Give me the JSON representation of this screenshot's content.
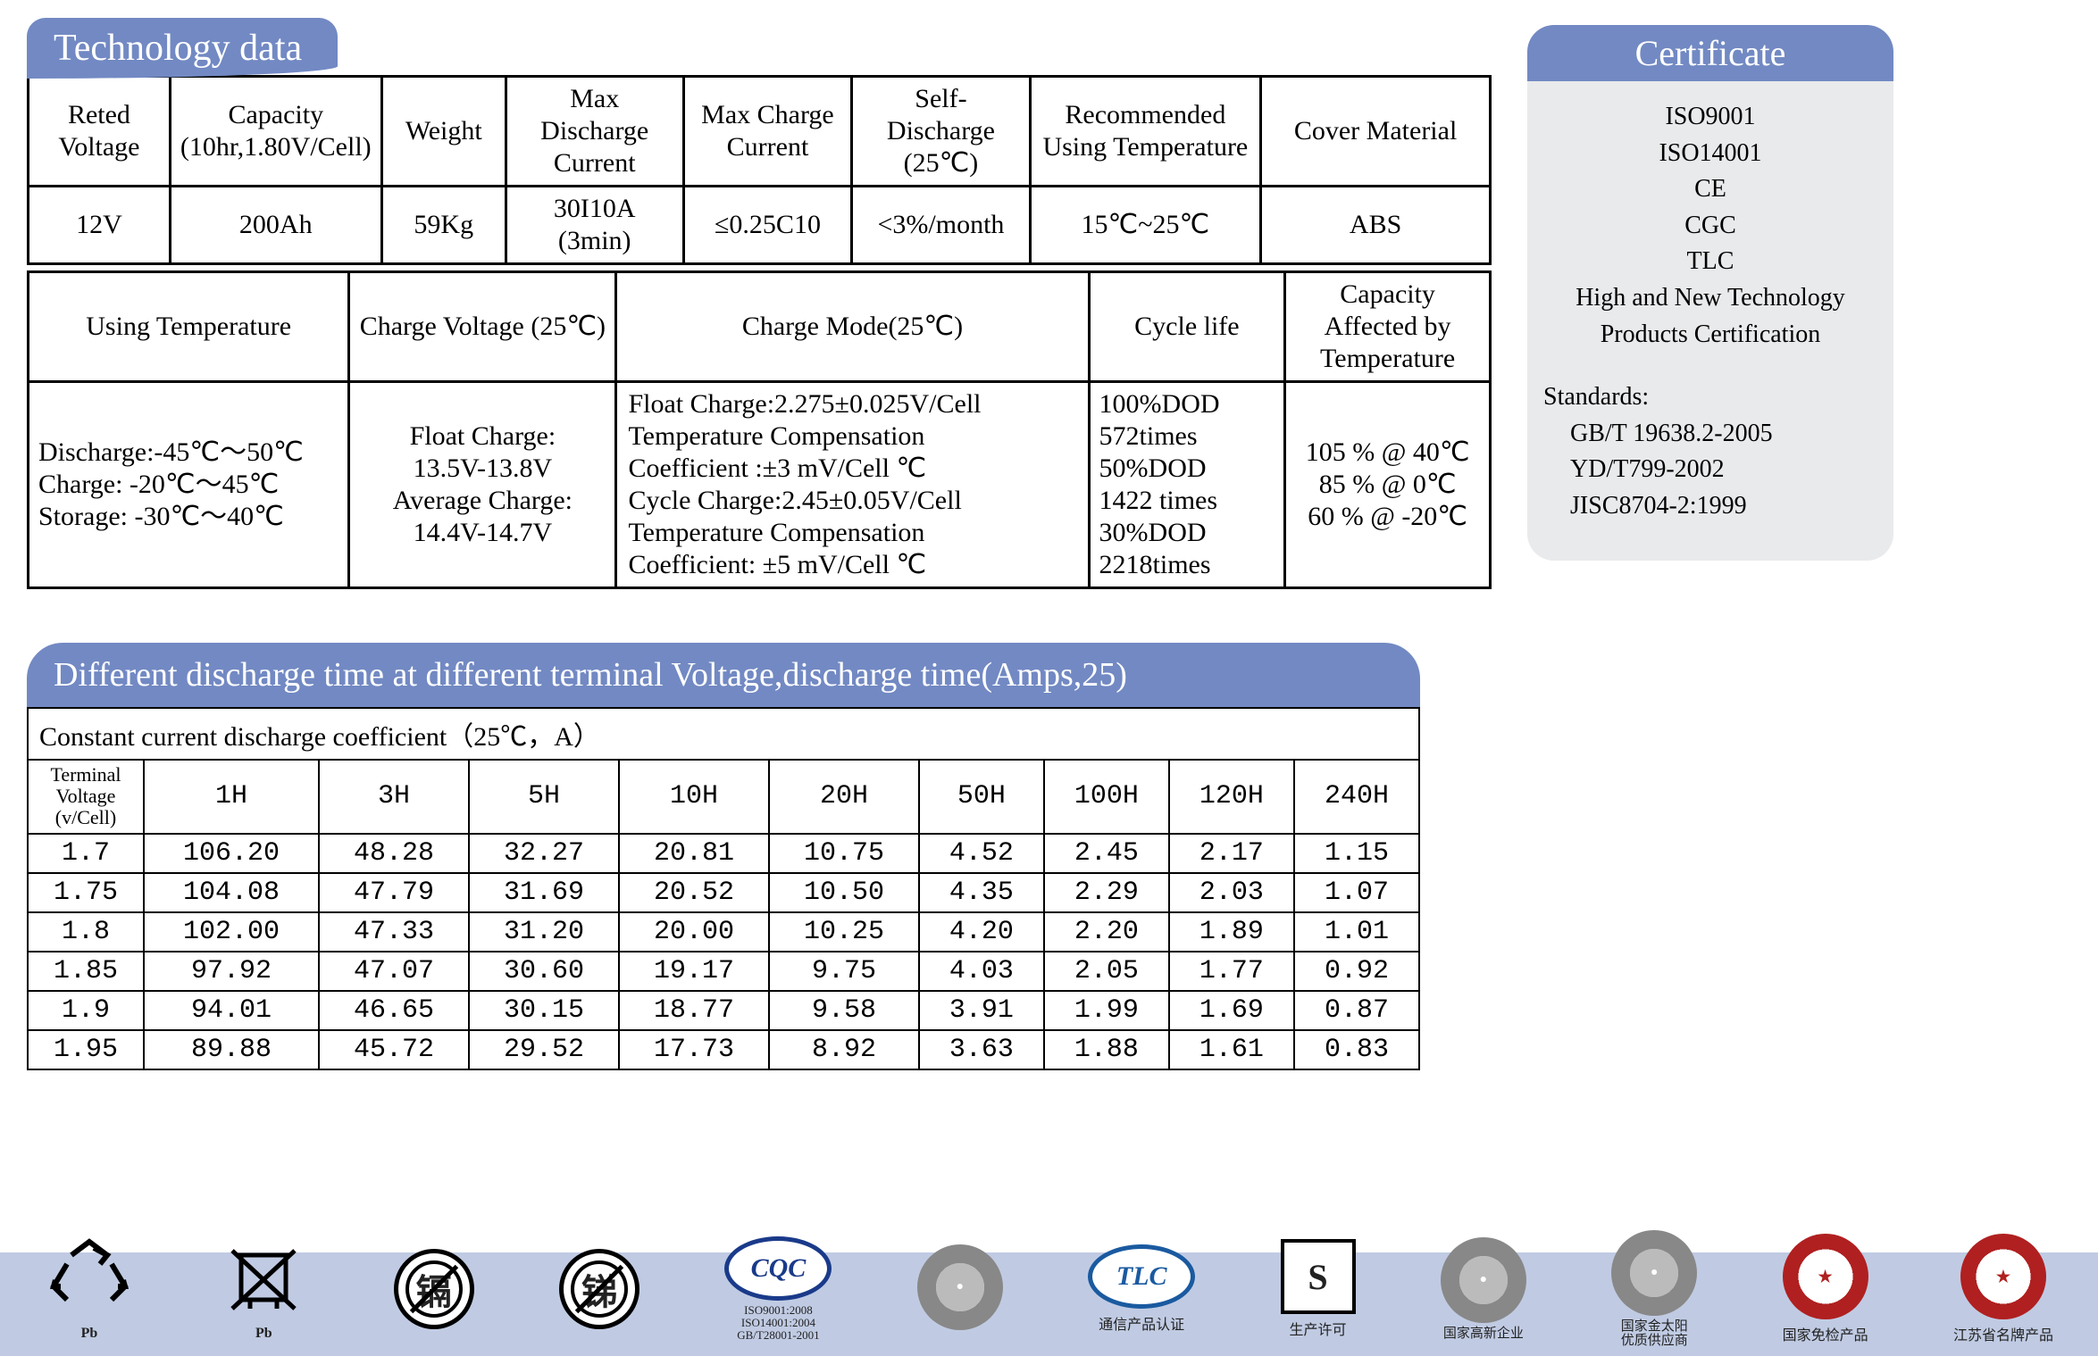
{
  "headers": {
    "tech": "Technology data",
    "discharge": "Different discharge time at different terminal Voltage,discharge time(Amps,25)",
    "cert": "Certificate"
  },
  "spec1": {
    "columns": [
      "Reted Voltage",
      "Capacity (10hr,1.80V/Cell)",
      "Weight",
      "Max Discharge Current",
      "Max Charge Current",
      "Self-Discharge (25℃)",
      "Recommended Using Temperature",
      "Cover Material"
    ],
    "values": [
      "12V",
      "200Ah",
      "59Kg",
      "30I10A (3min)",
      "≤0.25C10",
      "<3%/month",
      "15℃~25℃",
      "ABS"
    ]
  },
  "spec2": {
    "columns": [
      "Using Temperature",
      "Charge Voltage (25℃)",
      "Charge Mode(25℃)",
      "Cycle life",
      "Capacity Affected by Temperature"
    ],
    "using_temp": "Discharge:-45℃～50℃\nCharge: -20℃～45℃\nStorage: -30℃～40℃",
    "charge_voltage": "Float Charge:\n13.5V-13.8V\nAverage Charge:\n14.4V-14.7V",
    "charge_mode": "Float Charge:2.275±0.025V/Cell\nTemperature Compensation\nCoefficient :±3 mV/Cell ℃\nCycle Charge:2.45±0.05V/Cell\nTemperature Compensation\nCoefficient: ±5 mV/Cell ℃",
    "cycle_life": "100%DOD\n572times\n50%DOD\n1422 times\n30%DOD\n2218times",
    "cap_temp": "105 % @ 40℃\n85 % @ 0℃\n60 % @ -20℃"
  },
  "discharge_table": {
    "caption": "Constant current discharge coefficient（25℃，A）",
    "rowheader": "Terminal Voltage (v/Cell)",
    "cols": [
      "1H",
      "3H",
      "5H",
      "10H",
      "20H",
      "50H",
      "100H",
      "120H",
      "240H"
    ],
    "rows": [
      {
        "v": "1.7",
        "vals": [
          "106.20",
          "48.28",
          "32.27",
          "20.81",
          "10.75",
          "4.52",
          "2.45",
          "2.17",
          "1.15"
        ]
      },
      {
        "v": "1.75",
        "vals": [
          "104.08",
          "47.79",
          "31.69",
          "20.52",
          "10.50",
          "4.35",
          "2.29",
          "2.03",
          "1.07"
        ]
      },
      {
        "v": "1.8",
        "vals": [
          "102.00",
          "47.33",
          "31.20",
          "20.00",
          "10.25",
          "4.20",
          "2.20",
          "1.89",
          "1.01"
        ]
      },
      {
        "v": "1.85",
        "vals": [
          "97.92",
          "47.07",
          "30.60",
          "19.17",
          "9.75",
          "4.03",
          "2.05",
          "1.77",
          "0.92"
        ]
      },
      {
        "v": "1.9",
        "vals": [
          "94.01",
          "46.65",
          "30.15",
          "18.77",
          "9.58",
          "3.91",
          "1.99",
          "1.69",
          "0.87"
        ]
      },
      {
        "v": "1.95",
        "vals": [
          "89.88",
          "45.72",
          "29.52",
          "17.73",
          "8.92",
          "3.63",
          "1.88",
          "1.61",
          "0.83"
        ]
      }
    ]
  },
  "cert": {
    "items": [
      "ISO9001",
      "ISO14001",
      "CE",
      "CGC",
      "TLC",
      "High and New Technology Products Certification"
    ],
    "standards_label": "Standards:",
    "standards": [
      "GB/T 19638.2-2005",
      "YD/T799-2002",
      "JISC8704-2:1999"
    ]
  },
  "logos": [
    {
      "name": "pb-recycle",
      "label": "Pb"
    },
    {
      "name": "no-bin",
      "label": "Pb"
    },
    {
      "name": "cd-circle",
      "glyph": "镉"
    },
    {
      "name": "sb-circle",
      "glyph": "锑"
    },
    {
      "name": "cqc",
      "label": "ISO9001:2008\nISO14001:2004\nGB/T28001-2001"
    },
    {
      "name": "seal-1",
      "label": ""
    },
    {
      "name": "tlc",
      "label": "通信产品认证"
    },
    {
      "name": "shengchan",
      "label": "生产许可"
    },
    {
      "name": "gaoxin",
      "label": "国家高新企业"
    },
    {
      "name": "jintaiyang",
      "label": "国家金太阳\n优质供应商"
    },
    {
      "name": "mianjian",
      "label": "国家免检产品"
    },
    {
      "name": "mingpai",
      "label": "江苏省名牌产品"
    }
  ],
  "style": {
    "pill_bg": "#7289c3",
    "pill_fg": "#ffffff",
    "cert_body_bg": "#e9eaec",
    "strip_bg": "#c0cbe3",
    "border_color": "#000000",
    "body_font": "Times New Roman, serif",
    "mono_font": "Courier New, monospace"
  }
}
